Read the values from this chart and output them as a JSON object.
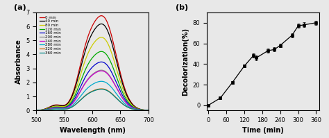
{
  "panel_a": {
    "times": [
      0,
      40,
      80,
      120,
      160,
      200,
      240,
      280,
      320,
      360
    ],
    "colors": [
      "#cc0000",
      "#000000",
      "#cccc00",
      "#00aa00",
      "#0000cc",
      "#888888",
      "#cc00cc",
      "#00aacc",
      "#cc6600",
      "#008888"
    ],
    "peak_absorbances": [
      6.35,
      5.8,
      4.9,
      3.95,
      3.25,
      2.7,
      2.65,
      1.95,
      1.45,
      1.42
    ],
    "peak_wavelength": 621,
    "shoulder_wavelength": 588,
    "shoulder_ratio": 0.42,
    "peak_sigma": 22,
    "shoulder_sigma": 16,
    "small_peak_wl": 535,
    "small_peak_sigma": 12,
    "small_peak_ratio": 0.06,
    "wavelength_min": 500,
    "wavelength_max": 700,
    "ylabel": "Absorbance",
    "xlabel": "Wavelength (nm)",
    "label": "(a)",
    "xticks": [
      500,
      550,
      600,
      650,
      700
    ],
    "yticks": [
      0,
      1,
      2,
      3,
      4,
      5,
      6,
      7
    ],
    "ylim": [
      0,
      7
    ]
  },
  "panel_b": {
    "times": [
      0,
      40,
      80,
      120,
      150,
      160,
      200,
      220,
      240,
      280,
      300,
      320,
      360
    ],
    "decolorization": [
      0,
      7,
      22,
      38,
      48,
      46,
      53,
      54,
      58,
      68,
      77,
      78,
      80
    ],
    "errors": [
      0.3,
      1.0,
      1.5,
      1.5,
      2.0,
      2.5,
      2.0,
      2.0,
      2.0,
      2.0,
      2.0,
      2.5,
      2.0
    ],
    "ylabel": "Decolorization(%)",
    "xlabel": "Time (min)",
    "label": "(b)",
    "xticks": [
      0,
      60,
      120,
      180,
      240,
      300,
      360
    ],
    "yticks": [
      0,
      20,
      40,
      60,
      80
    ],
    "ylim": [
      -5,
      90
    ],
    "xlim": [
      -5,
      370
    ]
  },
  "bg_color": "#e8e8e8"
}
